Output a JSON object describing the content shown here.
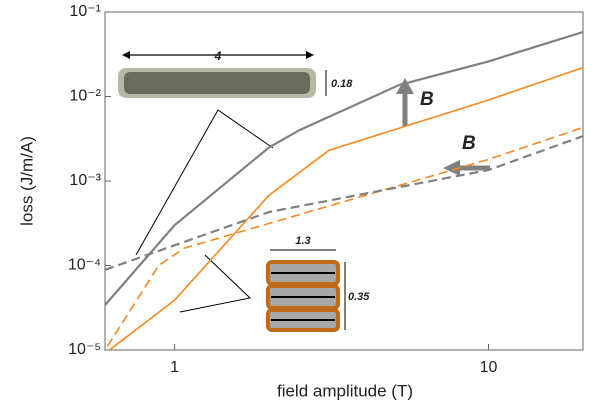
{
  "chart_data": {
    "type": "line",
    "xlabel": "field amplitude (T)",
    "ylabel": "loss (J/m/A)",
    "xlog": true,
    "ylog": true,
    "xlim": [
      0.6,
      20
    ],
    "ylim": [
      1e-05,
      0.1
    ],
    "xticks": [
      1,
      10
    ],
    "yticks": [
      {
        "value": 1e-05,
        "label": "10⁻⁵"
      },
      {
        "value": 0.0001,
        "label": "10⁻⁴"
      },
      {
        "value": 0.001,
        "label": "10⁻³"
      },
      {
        "value": 0.01,
        "label": "10⁻²"
      },
      {
        "value": 0.1,
        "label": "10⁻¹"
      }
    ],
    "series": [
      {
        "color": "#808080",
        "dash": false,
        "x": [
          0.6,
          1,
          2,
          2.5,
          5.2,
          10,
          20
        ],
        "values": [
          3.4e-05,
          0.0003,
          0.0025,
          0.004,
          0.0137,
          0.026,
          0.058
        ]
      },
      {
        "color": "#f5891f",
        "dash": false,
        "x": [
          0.62,
          1,
          2,
          3.1,
          10,
          20
        ],
        "values": [
          1e-05,
          3.9e-05,
          0.00068,
          0.0023,
          0.0091,
          0.022
        ]
      },
      {
        "color": "#f5891f",
        "dash": true,
        "x": [
          0.61,
          0.89,
          1.07,
          2.5,
          10,
          20
        ],
        "values": [
          1.1e-05,
          0.0001,
          0.00016,
          0.0004,
          0.0018,
          0.0043
        ]
      },
      {
        "color": "#808080",
        "dash": true,
        "x": [
          0.6,
          2,
          10,
          20
        ],
        "values": [
          8.9e-05,
          0.00043,
          0.00135,
          0.0034
        ]
      }
    ],
    "annotations": [
      "4",
      "0.18",
      "B",
      "B",
      "1.3",
      "0.35"
    ]
  }
}
